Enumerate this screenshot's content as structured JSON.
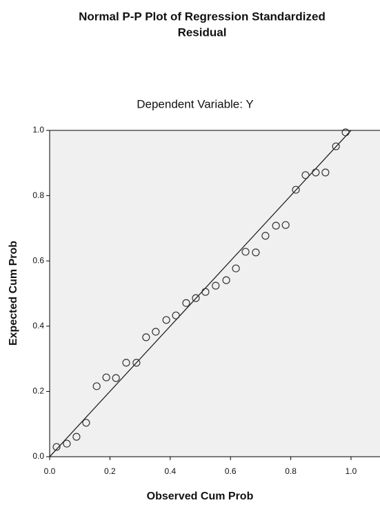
{
  "chart_data": {
    "type": "scatter",
    "title": [
      "Normal P-P Plot of Regression Standardized",
      "Residual"
    ],
    "subtitle": "Dependent Variable: Y",
    "x_label": "Observed Cum Prob",
    "y_label": "Expected Cum Prob",
    "x": [
      0.023,
      0.057,
      0.089,
      0.121,
      0.156,
      0.188,
      0.22,
      0.254,
      0.288,
      0.32,
      0.352,
      0.387,
      0.419,
      0.453,
      0.485,
      0.517,
      0.551,
      0.586,
      0.618,
      0.65,
      0.684,
      0.716,
      0.751,
      0.783,
      0.817,
      0.849,
      0.883,
      0.915,
      0.95,
      0.982
    ],
    "values": [
      0.03,
      0.04,
      0.061,
      0.104,
      0.216,
      0.243,
      0.241,
      0.288,
      0.288,
      0.366,
      0.383,
      0.419,
      0.433,
      0.471,
      0.486,
      0.505,
      0.524,
      0.541,
      0.577,
      0.628,
      0.626,
      0.677,
      0.708,
      0.71,
      0.818,
      0.863,
      0.871,
      0.871,
      0.951,
      0.994
    ],
    "reference_line": {
      "x": [
        0,
        1
      ],
      "y": [
        0,
        1
      ]
    },
    "color": "#333333",
    "xlim": [
      0,
      1.1
    ],
    "ylim": [
      0,
      1
    ],
    "xticks": [
      {
        "value": 0,
        "label": "0.0"
      },
      {
        "value": 0.2,
        "label": "0.2"
      },
      {
        "value": 0.4,
        "label": "0.4"
      },
      {
        "value": 0.6,
        "label": "0.6"
      },
      {
        "value": 0.8,
        "label": "0.8"
      },
      {
        "value": 1,
        "label": "1.0"
      }
    ],
    "yticks": [
      {
        "value": 0,
        "label": "0.0"
      },
      {
        "value": 0.2,
        "label": "0.2"
      },
      {
        "value": 0.4,
        "label": "0.4"
      },
      {
        "value": 0.6,
        "label": "0.6"
      },
      {
        "value": 0.8,
        "label": "0.8"
      },
      {
        "value": 1,
        "label": "1.0"
      }
    ],
    "grid": false
  }
}
